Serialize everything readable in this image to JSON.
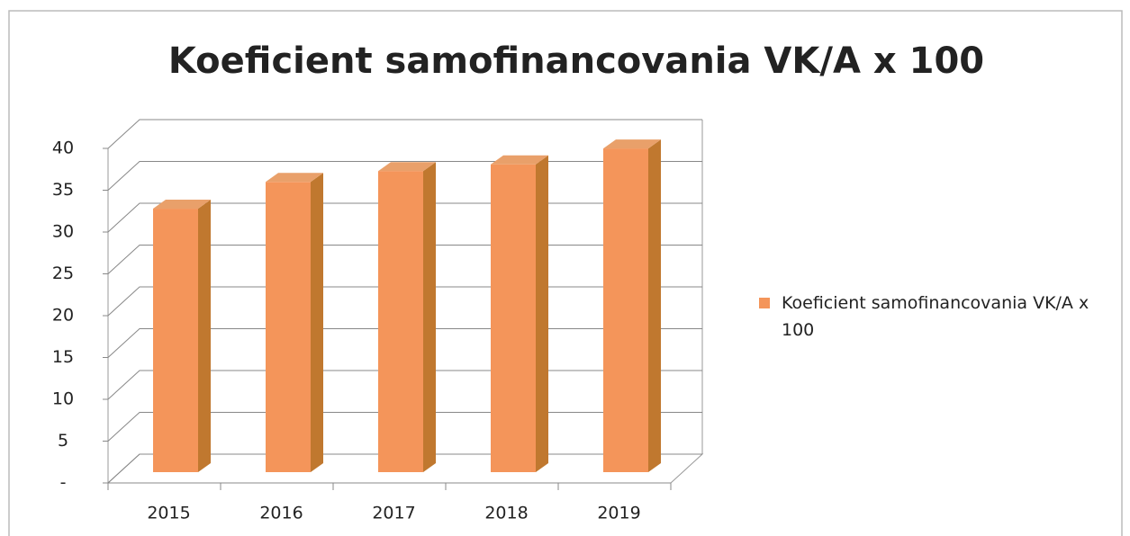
{
  "chart_data": {
    "type": "bar3d",
    "title": "Koeficient samofinancovania VK/A x 100",
    "categories": [
      "2015",
      "2016",
      "2017",
      "2018",
      "2019"
    ],
    "series": [
      {
        "name": "Koeficient samofinancovania VK/A x 100",
        "color": "#f4955a",
        "values": [
          31.5,
          34.7,
          36,
          36.8,
          38.7
        ]
      }
    ],
    "ylim": [
      0,
      40
    ],
    "yticks": [
      {
        "value": 0,
        "label": "-"
      },
      5,
      10,
      15,
      20,
      25,
      30,
      35,
      40
    ],
    "grid": true,
    "legend": "right"
  }
}
